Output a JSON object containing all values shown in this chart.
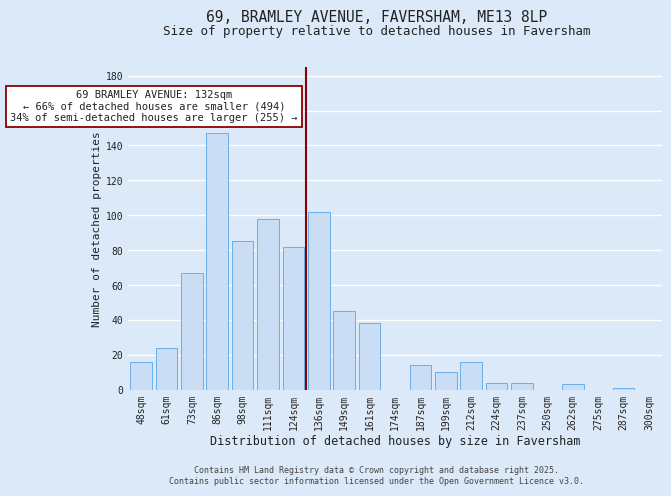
{
  "title": "69, BRAMLEY AVENUE, FAVERSHAM, ME13 8LP",
  "subtitle": "Size of property relative to detached houses in Faversham",
  "xlabel": "Distribution of detached houses by size in Faversham",
  "ylabel": "Number of detached properties",
  "bar_labels": [
    "48sqm",
    "61sqm",
    "73sqm",
    "86sqm",
    "98sqm",
    "111sqm",
    "124sqm",
    "136sqm",
    "149sqm",
    "161sqm",
    "174sqm",
    "187sqm",
    "199sqm",
    "212sqm",
    "224sqm",
    "237sqm",
    "250sqm",
    "262sqm",
    "275sqm",
    "287sqm",
    "300sqm"
  ],
  "bar_values": [
    16,
    24,
    67,
    147,
    85,
    98,
    82,
    102,
    45,
    38,
    0,
    14,
    10,
    16,
    4,
    4,
    0,
    3,
    0,
    1,
    0
  ],
  "bar_color": "#c9ddf5",
  "bar_edge_color": "#6aaee8",
  "background_color": "#dce9f8",
  "plot_bg_color": "#dce9f8",
  "grid_color": "#ffffff",
  "vline_color": "#8b0000",
  "vline_x_index": 7,
  "annotation_title": "69 BRAMLEY AVENUE: 132sqm",
  "annotation_line1": "← 66% of detached houses are smaller (494)",
  "annotation_line2": "34% of semi-detached houses are larger (255) →",
  "annotation_box_facecolor": "#ffffff",
  "annotation_box_edgecolor": "#8b0000",
  "ylim": [
    0,
    185
  ],
  "yticks": [
    0,
    20,
    40,
    60,
    80,
    100,
    120,
    140,
    160,
    180
  ],
  "footer1": "Contains HM Land Registry data © Crown copyright and database right 2025.",
  "footer2": "Contains public sector information licensed under the Open Government Licence v3.0.",
  "title_fontsize": 10.5,
  "subtitle_fontsize": 9,
  "xlabel_fontsize": 8.5,
  "ylabel_fontsize": 8,
  "tick_fontsize": 7,
  "annotation_fontsize": 7.5,
  "footer_fontsize": 6
}
